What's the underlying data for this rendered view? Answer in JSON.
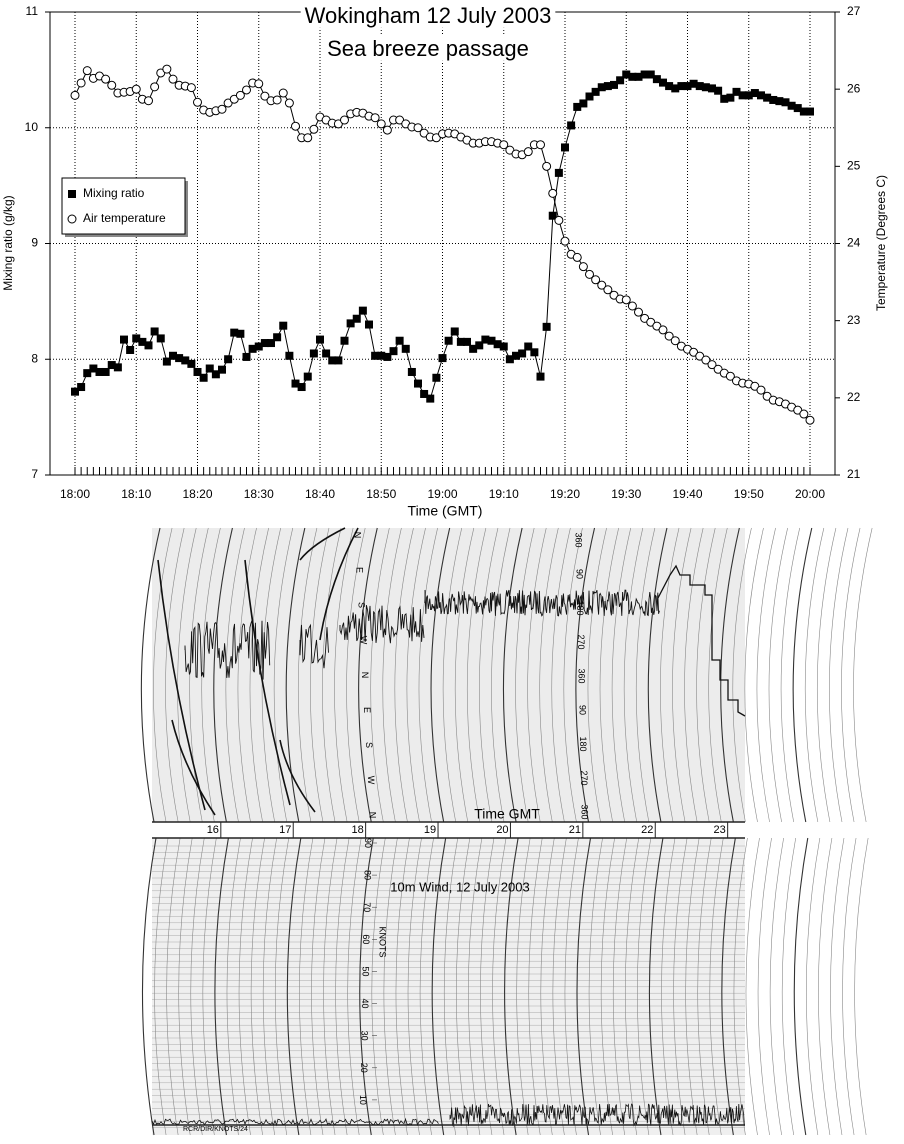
{
  "chart_data": [
    {
      "type": "line",
      "title": "Wokingham  12 July 2003",
      "subtitle": "Sea breeze passage",
      "xlabel": "Time (GMT)",
      "ylabel": "Mixing ratio (g/kg)",
      "y2label": "Temperature (Degrees C)",
      "categories": [
        "18:00",
        null,
        null,
        null,
        null,
        null,
        null,
        null,
        null,
        null,
        "18:10",
        null,
        null,
        null,
        null,
        null,
        null,
        null,
        null,
        null,
        "18:20",
        null,
        null,
        null,
        null,
        null,
        null,
        null,
        null,
        null,
        "18:30",
        null,
        null,
        null,
        null,
        null,
        null,
        null,
        null,
        null,
        "18:40",
        null,
        null,
        null,
        null,
        null,
        null,
        null,
        null,
        null,
        "18:50",
        null,
        null,
        null,
        null,
        null,
        null,
        null,
        null,
        null,
        "19:00",
        null,
        null,
        null,
        null,
        null,
        null,
        null,
        null,
        null,
        "19:10",
        null,
        null,
        null,
        null,
        null,
        null,
        null,
        null,
        null,
        "19:20",
        null,
        null,
        null,
        null,
        null,
        null,
        null,
        null,
        null,
        "19:30",
        null,
        null,
        null,
        null,
        null,
        null,
        null,
        null,
        null,
        "19:40",
        null,
        null,
        null,
        null,
        null,
        null,
        null,
        null,
        null,
        "19:50",
        null,
        null,
        null,
        null,
        null,
        null,
        null,
        null,
        null,
        "20:00"
      ],
      "ylim": [
        7,
        11
      ],
      "yticks": [
        7,
        8,
        9,
        10,
        11
      ],
      "y2lim": [
        21,
        27
      ],
      "y2ticks": [
        21,
        22,
        23,
        24,
        25,
        26,
        27
      ],
      "grid": true,
      "legend": "left",
      "series": [
        {
          "name": "Mixing ratio",
          "color": "#000000",
          "marker": "square",
          "values": [
            7.72,
            7.76,
            7.88,
            7.92,
            7.89,
            7.89,
            7.95,
            7.93,
            8.17,
            8.08,
            8.18,
            8.15,
            8.12,
            8.24,
            8.18,
            7.98,
            8.03,
            8.01,
            7.99,
            7.96,
            7.89,
            7.84,
            7.92,
            7.87,
            7.91,
            8.0,
            8.23,
            8.22,
            8.02,
            8.09,
            8.11,
            8.14,
            8.14,
            8.19,
            8.29,
            8.03,
            7.79,
            7.76,
            7.85,
            8.05,
            8.17,
            8.05,
            7.99,
            7.99,
            8.16,
            8.31,
            8.35,
            8.42,
            8.3,
            8.03,
            8.03,
            8.02,
            8.07,
            8.16,
            8.09,
            7.89,
            7.79,
            7.7,
            7.66,
            7.84,
            8.01,
            8.16,
            8.24,
            8.15,
            8.15,
            8.09,
            8.12,
            8.17,
            8.16,
            8.13,
            8.11,
            8.0,
            8.03,
            8.05,
            8.11,
            8.06,
            7.85,
            8.28,
            9.24,
            9.61,
            9.83,
            10.02,
            10.18,
            10.21,
            10.27,
            10.31,
            10.35,
            10.36,
            10.37,
            10.41,
            10.46,
            10.44,
            10.44,
            10.46,
            10.46,
            10.42,
            10.39,
            10.36,
            10.34,
            10.36,
            10.36,
            10.38,
            10.36,
            10.35,
            10.34,
            10.32,
            10.25,
            10.26,
            10.31,
            10.28,
            10.28,
            10.3,
            10.28,
            10.26,
            10.24,
            10.23,
            10.22,
            10.19,
            10.17,
            10.14,
            10.14
          ]
        },
        {
          "name": "Air temperature",
          "color": "#000000",
          "marker": "circle",
          "axis": "y2",
          "values": [
            25.92,
            26.08,
            26.24,
            26.14,
            26.17,
            26.13,
            26.05,
            25.95,
            25.96,
            25.97,
            26.0,
            25.87,
            25.85,
            26.03,
            26.21,
            26.26,
            26.13,
            26.05,
            26.04,
            26.02,
            25.83,
            25.73,
            25.7,
            25.72,
            25.74,
            25.82,
            25.87,
            25.92,
            25.99,
            26.08,
            26.07,
            25.91,
            25.85,
            25.86,
            25.95,
            25.82,
            25.52,
            25.37,
            25.37,
            25.48,
            25.64,
            25.6,
            25.56,
            25.55,
            25.6,
            25.68,
            25.7,
            25.69,
            25.65,
            25.63,
            25.55,
            25.47,
            25.6,
            25.6,
            25.55,
            25.51,
            25.5,
            25.43,
            25.38,
            25.37,
            25.42,
            25.43,
            25.42,
            25.38,
            25.34,
            25.3,
            25.3,
            25.32,
            25.32,
            25.3,
            25.28,
            25.21,
            25.16,
            25.15,
            25.19,
            25.28,
            25.28,
            25.0,
            24.65,
            24.3,
            24.03,
            23.86,
            23.82,
            23.7,
            23.6,
            23.53,
            23.46,
            23.4,
            23.33,
            23.28,
            23.27,
            23.19,
            23.11,
            23.03,
            22.98,
            22.93,
            22.88,
            22.8,
            22.74,
            22.67,
            22.63,
            22.59,
            22.54,
            22.49,
            22.43,
            22.37,
            22.32,
            22.28,
            22.22,
            22.19,
            22.18,
            22.15,
            22.1,
            22.02,
            21.97,
            21.95,
            21.92,
            21.88,
            21.84,
            21.79,
            21.71
          ]
        }
      ]
    },
    {
      "type": "recorder",
      "title": "10m Wind, 12 July 2003",
      "xlabel": "Time GMT",
      "xlim": [
        15.16,
        23.35
      ],
      "xticks": [
        16,
        17,
        18,
        19,
        20,
        21,
        22,
        23
      ],
      "direction_labels": [
        "N",
        "E",
        "S",
        "W",
        "N",
        "E",
        "S",
        "W",
        "N"
      ],
      "direction_ticks": [
        360,
        90,
        180,
        270,
        360,
        90,
        180,
        270,
        360
      ],
      "ylabel": "KNOTS",
      "ylim": [
        0,
        90
      ],
      "yticks": [
        10,
        20,
        30,
        40,
        50,
        60,
        70,
        80,
        90
      ],
      "footer": "RCR/DIR/KNOTS/24"
    }
  ]
}
